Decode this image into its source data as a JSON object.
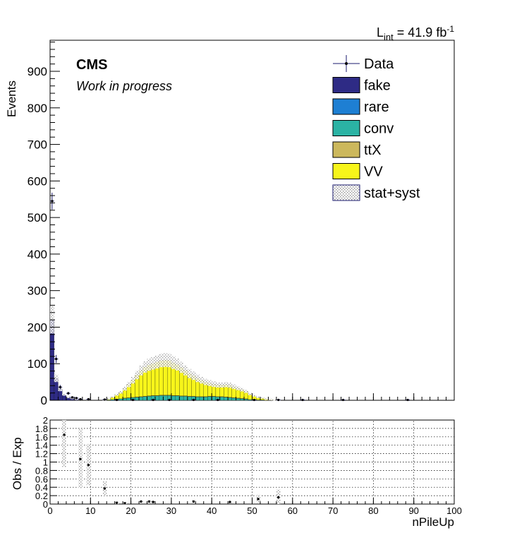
{
  "lumi": {
    "prefix": "L",
    "sub": "int",
    "eq": " = 41.9 fb",
    "sup": "-1"
  },
  "cms": {
    "label": "CMS",
    "sublabel": "Work in progress"
  },
  "legend": [
    {
      "label": "Data",
      "kind": "data"
    },
    {
      "label": "fake",
      "kind": "fill",
      "color": "#2e2b85"
    },
    {
      "label": "rare",
      "kind": "fill",
      "color": "#1e7fd3"
    },
    {
      "label": "conv",
      "kind": "fill",
      "color": "#2bb3a4"
    },
    {
      "label": "ttX",
      "kind": "fill",
      "color": "#ccb85c"
    },
    {
      "label": "VV",
      "kind": "fill",
      "color": "#f7f51a"
    },
    {
      "label": "stat+syst",
      "kind": "hatch",
      "color": "#999999"
    }
  ],
  "chart_data": [
    {
      "type": "area",
      "stacked": true,
      "ylabel": "Events",
      "xlim": [
        0,
        100
      ],
      "ylim": [
        0,
        985
      ],
      "yticks": [
        0,
        100,
        200,
        300,
        400,
        500,
        600,
        700,
        800,
        900
      ],
      "bin_width": 1,
      "series": [
        {
          "name": "fake",
          "color": "#2e2b85",
          "values": [
            220,
            60,
            30,
            15,
            8,
            5,
            3,
            0,
            0,
            0,
            0,
            0,
            0,
            0,
            0,
            0,
            0,
            0,
            0,
            0,
            0,
            0,
            0,
            0,
            0,
            0,
            0,
            0,
            0,
            0,
            0,
            0,
            0,
            0,
            0,
            0,
            0,
            0,
            0,
            0,
            0,
            0,
            0,
            0,
            0,
            0,
            0,
            0,
            0,
            0,
            0,
            0,
            0,
            0,
            0,
            0,
            0,
            0,
            0,
            0
          ]
        },
        {
          "name": "rare",
          "color": "#1e7fd3",
          "values": [
            0,
            0,
            0,
            0,
            0,
            0,
            0,
            0,
            0,
            0,
            0,
            0,
            0,
            0,
            0,
            0,
            0,
            0,
            0,
            0,
            0,
            0,
            0,
            0,
            0,
            0,
            0,
            0,
            0,
            0,
            0,
            0,
            0,
            0,
            0,
            0,
            0,
            0,
            0,
            0,
            0,
            0,
            0,
            0,
            0,
            0,
            0,
            0,
            0,
            0,
            0,
            0,
            0,
            0,
            0,
            0,
            0,
            0,
            0,
            0
          ]
        },
        {
          "name": "conv",
          "color": "#2bb3a4",
          "values": [
            0,
            0,
            0,
            0,
            0,
            0,
            0,
            0,
            0,
            0,
            0,
            0,
            0,
            0,
            1,
            2,
            3,
            4,
            5,
            6,
            7,
            8,
            9,
            10,
            11,
            12,
            12,
            13,
            13,
            13,
            12,
            12,
            11,
            11,
            10,
            10,
            9,
            9,
            9,
            10,
            10,
            9,
            9,
            8,
            7,
            6,
            5,
            4,
            3,
            2,
            2,
            1,
            1,
            0,
            0,
            0,
            0,
            0,
            0,
            0
          ]
        },
        {
          "name": "ttX",
          "color": "#ccb85c",
          "values": [
            0,
            0,
            0,
            0,
            0,
            0,
            0,
            0,
            0,
            0,
            0,
            0,
            0,
            0,
            0,
            0,
            0,
            0,
            1,
            1,
            1,
            1,
            1,
            1,
            1,
            1,
            1,
            1,
            1,
            1,
            1,
            1,
            1,
            1,
            1,
            1,
            1,
            1,
            1,
            1,
            1,
            1,
            1,
            1,
            1,
            1,
            1,
            1,
            1,
            0,
            0,
            0,
            0,
            0,
            0,
            0,
            0,
            0,
            0,
            0
          ]
        },
        {
          "name": "VV",
          "color": "#f7f51a",
          "values": [
            0,
            0,
            0,
            0,
            0,
            0,
            0,
            0,
            0,
            0,
            0,
            0,
            0,
            1,
            3,
            7,
            12,
            18,
            26,
            36,
            47,
            60,
            72,
            80,
            85,
            88,
            92,
            95,
            96,
            95,
            90,
            85,
            78,
            70,
            62,
            56,
            50,
            45,
            40,
            36,
            33,
            32,
            32,
            34,
            33,
            30,
            27,
            24,
            20,
            15,
            10,
            7,
            5,
            3,
            2,
            1,
            1,
            0,
            0,
            0
          ]
        }
      ],
      "data_points": [
        {
          "x": 0.5,
          "y": 545,
          "err": 23
        },
        {
          "x": 1.5,
          "y": 113,
          "err": 11
        },
        {
          "x": 2.5,
          "y": 36,
          "err": 6
        },
        {
          "x": 4.5,
          "y": 19,
          "err": 4
        },
        {
          "x": 5.5,
          "y": 8,
          "err": 3
        },
        {
          "x": 6.5,
          "y": 6,
          "err": 2
        },
        {
          "x": 7.5,
          "y": 3,
          "err": 2
        },
        {
          "x": 9.5,
          "y": 3,
          "err": 2
        },
        {
          "x": 13.5,
          "y": 2,
          "err": 1
        },
        {
          "x": 16.5,
          "y": 1,
          "err": 1
        },
        {
          "x": 20.5,
          "y": 1,
          "err": 1
        },
        {
          "x": 25.5,
          "y": 1,
          "err": 1
        },
        {
          "x": 29.5,
          "y": 1,
          "err": 1
        },
        {
          "x": 35.5,
          "y": 1,
          "err": 1
        },
        {
          "x": 41.5,
          "y": 1,
          "err": 1
        },
        {
          "x": 50.5,
          "y": 1,
          "err": 1
        },
        {
          "x": 56.5,
          "y": 1,
          "err": 1
        },
        {
          "x": 62.5,
          "y": 1,
          "err": 1
        },
        {
          "x": 72.5,
          "y": 1,
          "err": 1
        },
        {
          "x": 88.5,
          "y": 1,
          "err": 1
        }
      ],
      "uncertainty": "stat+syst"
    },
    {
      "type": "scatter",
      "xlabel": "nPileUp",
      "ylabel": "Obs / Exp",
      "xlim": [
        0,
        100
      ],
      "ylim": [
        0,
        2
      ],
      "yticks": [
        0,
        0.2,
        0.4,
        0.6,
        0.8,
        1,
        1.2,
        1.4,
        1.6,
        1.8,
        2
      ],
      "yticklabels": [
        "0",
        "0.2",
        "0.4",
        "0.6",
        "0.8",
        "1",
        "1.2",
        "1.4",
        "1.6",
        "1.8",
        "2"
      ],
      "xticks": [
        0,
        10,
        20,
        30,
        40,
        50,
        60,
        70,
        80,
        90,
        100
      ],
      "xticklabels": [
        "0",
        "10",
        "20",
        "30",
        "40",
        "50",
        "60",
        "70",
        "80",
        "90",
        "100"
      ],
      "grid": true,
      "points": [
        {
          "x": 3.5,
          "y": 1.65,
          "band": [
            0.88,
            2.0
          ]
        },
        {
          "x": 7.5,
          "y": 1.07,
          "band": [
            0.38,
            1.78
          ]
        },
        {
          "x": 9.5,
          "y": 0.93,
          "band": [
            0.45,
            1.43
          ]
        },
        {
          "x": 13.5,
          "y": 0.37,
          "band": [
            0.2,
            0.55
          ]
        },
        {
          "x": 16.5,
          "y": 0.03,
          "band": [
            0.0,
            0.06
          ]
        },
        {
          "x": 18.5,
          "y": 0.02,
          "band": [
            0.0,
            0.05
          ]
        },
        {
          "x": 22.5,
          "y": 0.06,
          "band": [
            0.03,
            0.09
          ]
        },
        {
          "x": 24.5,
          "y": 0.06,
          "band": [
            0.03,
            0.09
          ]
        },
        {
          "x": 25.5,
          "y": 0.05,
          "band": [
            0.02,
            0.08
          ]
        },
        {
          "x": 35.5,
          "y": 0.06,
          "band": [
            0.03,
            0.09
          ]
        },
        {
          "x": 44.5,
          "y": 0.05,
          "band": [
            0.02,
            0.08
          ]
        },
        {
          "x": 51.5,
          "y": 0.12,
          "band": [
            0.03,
            0.22
          ]
        },
        {
          "x": 56.5,
          "y": 0.16,
          "band": [
            0.0,
            0.35
          ]
        }
      ]
    }
  ]
}
